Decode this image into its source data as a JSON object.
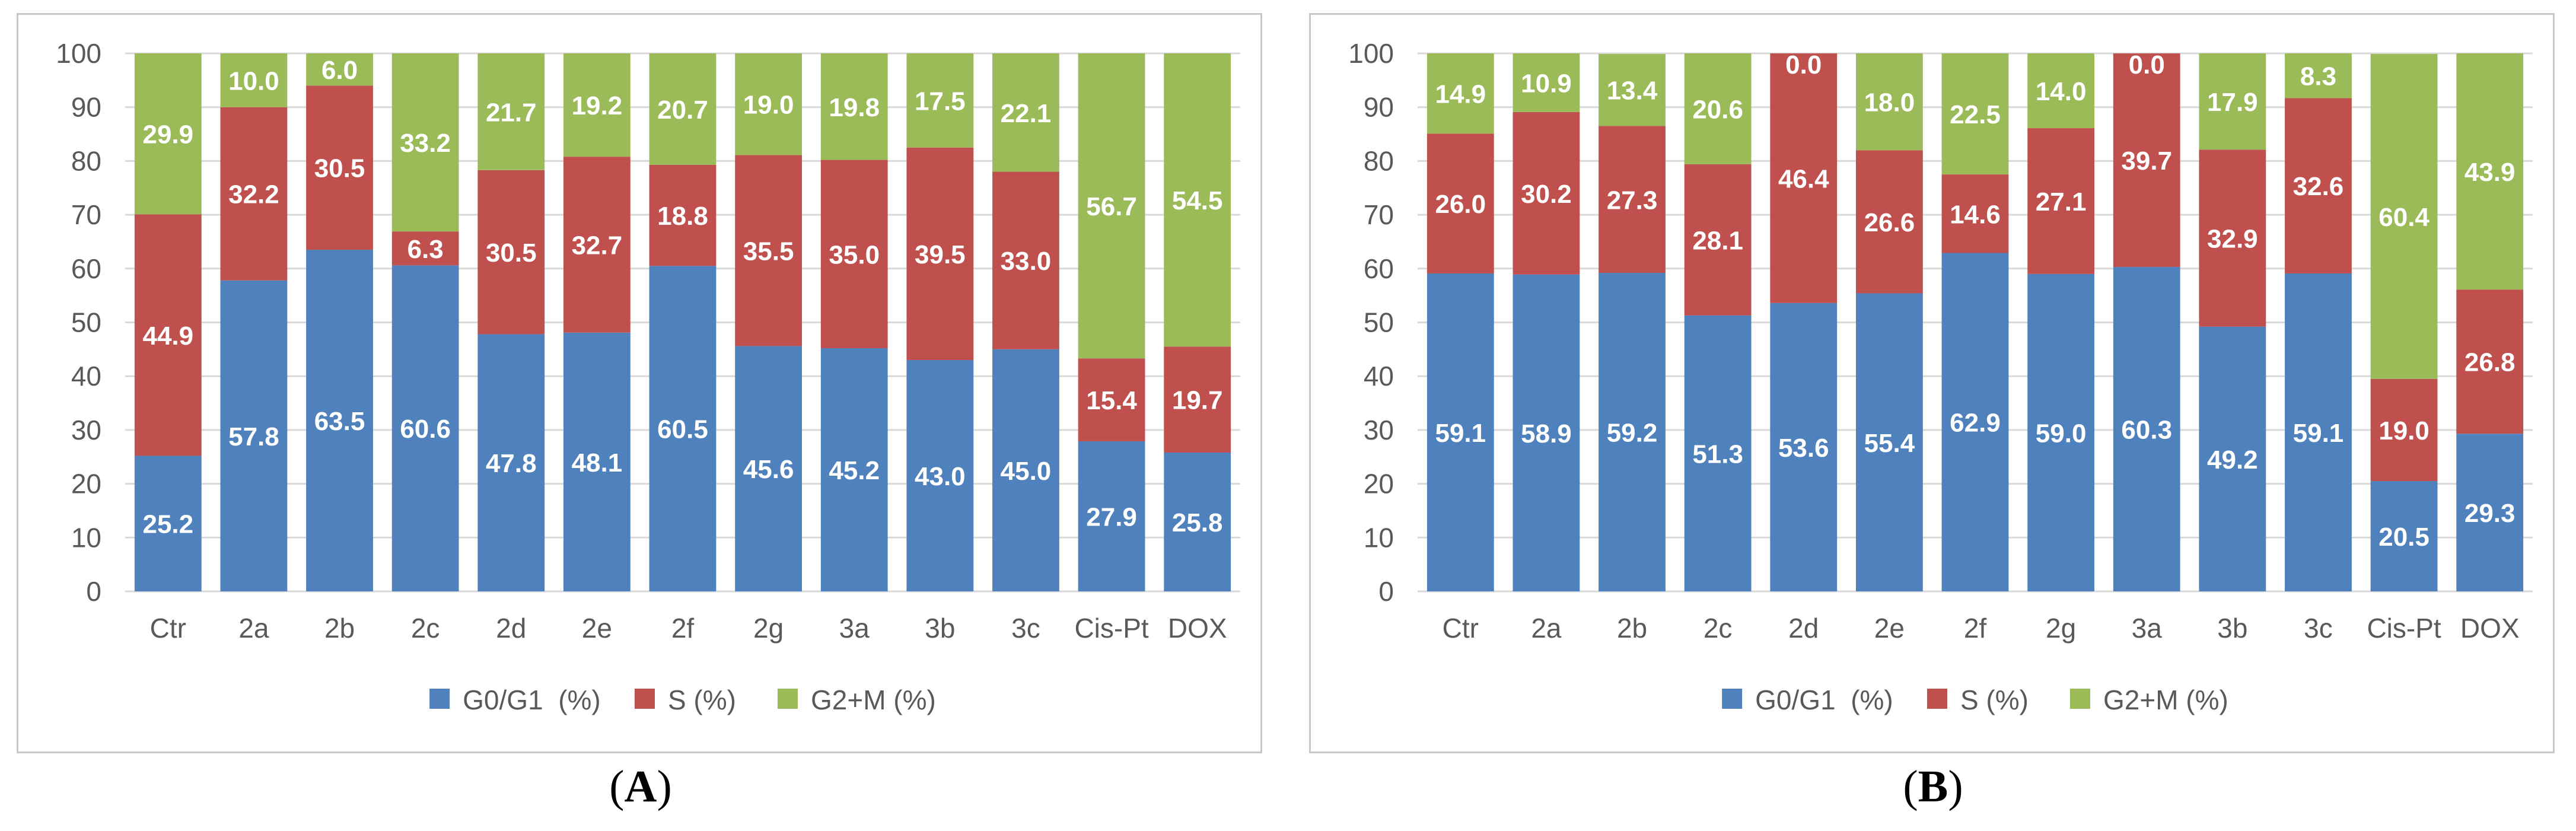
{
  "colors": {
    "g0g1": "#4f81bd",
    "s": "#c0504d",
    "g2m": "#9bbb59",
    "grid": "#d9d9d9",
    "axis_text": "#595959",
    "label_text": "#ffffff"
  },
  "panels": [
    {
      "caption_letter": "A",
      "caption_open": "(",
      "caption_close": ")"
    },
    {
      "caption_letter": "B",
      "caption_open": "(",
      "caption_close": ")"
    }
  ],
  "chart_data": [
    {
      "type": "bar",
      "stacked": true,
      "title": "",
      "xlabel": "",
      "ylabel": "",
      "ylim": [
        0,
        100
      ],
      "yticks": [
        "0",
        "10",
        "20",
        "30",
        "40",
        "50",
        "60",
        "70",
        "80",
        "90",
        "100"
      ],
      "grid": true,
      "legend_position": "bottom",
      "categories": [
        "Ctr",
        "2a",
        "2b",
        "2c",
        "2d",
        "2e",
        "2f",
        "2g",
        "3a",
        "3b",
        "3c",
        "Cis-Pt",
        "DOX"
      ],
      "series": [
        {
          "name": "G0/G1  (%)",
          "values": [
            25.2,
            57.8,
            63.5,
            60.6,
            47.8,
            48.1,
            60.5,
            45.6,
            45.2,
            43.0,
            45.0,
            27.9,
            25.8
          ],
          "labels": [
            "25.2",
            "57.8",
            "63.5",
            "60.6",
            "47.8",
            "48.1",
            "60.5",
            "45.6",
            "45.2",
            "43.0",
            "45.0",
            "27.9",
            "25.8"
          ]
        },
        {
          "name": "S (%)",
          "values": [
            44.9,
            32.2,
            30.5,
            6.3,
            30.5,
            32.7,
            18.8,
            35.5,
            35.0,
            39.5,
            33.0,
            15.4,
            19.7
          ],
          "labels": [
            "44.9",
            "32.2",
            "30.5",
            "6.3",
            "30.5",
            "32.7",
            "18.8",
            "35.5",
            "35.0",
            "39.5",
            "33.0",
            "15.4",
            "19.7"
          ]
        },
        {
          "name": "G2+M (%)",
          "values": [
            29.9,
            10.0,
            6.0,
            33.2,
            21.7,
            19.2,
            20.7,
            19.0,
            19.8,
            17.5,
            22.1,
            56.7,
            54.5
          ],
          "labels": [
            "29.9",
            "10.0",
            "6.0",
            "33.2",
            "21.7",
            "19.2",
            "20.7",
            "19.0",
            "19.8",
            "17.5",
            "22.1",
            "56.7",
            "54.5"
          ]
        }
      ]
    },
    {
      "type": "bar",
      "stacked": true,
      "title": "",
      "xlabel": "",
      "ylabel": "",
      "ylim": [
        0,
        100
      ],
      "yticks": [
        "0",
        "10",
        "20",
        "30",
        "40",
        "50",
        "60",
        "70",
        "80",
        "90",
        "100"
      ],
      "grid": true,
      "legend_position": "bottom",
      "categories": [
        "Ctr",
        "2a",
        "2b",
        "2c",
        "2d",
        "2e",
        "2f",
        "2g",
        "3a",
        "3b",
        "3c",
        "Cis-Pt",
        "DOX"
      ],
      "series": [
        {
          "name": "G0/G1  (%)",
          "values": [
            59.1,
            58.9,
            59.2,
            51.3,
            53.6,
            55.4,
            62.9,
            59.0,
            60.3,
            49.2,
            59.1,
            20.5,
            29.3
          ],
          "labels": [
            "59.1",
            "58.9",
            "59.2",
            "51.3",
            "53.6",
            "55.4",
            "62.9",
            "59.0",
            "60.3",
            "49.2",
            "59.1",
            "20.5",
            "29.3"
          ]
        },
        {
          "name": "S (%)",
          "values": [
            26.0,
            30.2,
            27.3,
            28.1,
            46.4,
            26.6,
            14.6,
            27.1,
            39.7,
            32.9,
            32.6,
            19.0,
            26.8
          ],
          "labels": [
            "26.0",
            "30.2",
            "27.3",
            "28.1",
            "46.4",
            "26.6",
            "14.6",
            "27.1",
            "39.7",
            "32.9",
            "32.6",
            "19.0",
            "26.8"
          ]
        },
        {
          "name": "G2+M (%)",
          "values": [
            14.9,
            10.9,
            13.4,
            20.6,
            0.0,
            18.0,
            22.5,
            14.0,
            0.0,
            17.9,
            8.3,
            60.4,
            43.9
          ],
          "labels": [
            "14.9",
            "10.9",
            "13.4",
            "20.6",
            "0.0",
            "18.0",
            "22.5",
            "14.0",
            "0.0",
            "17.9",
            "8.3",
            "60.4",
            "43.9"
          ]
        }
      ]
    }
  ]
}
